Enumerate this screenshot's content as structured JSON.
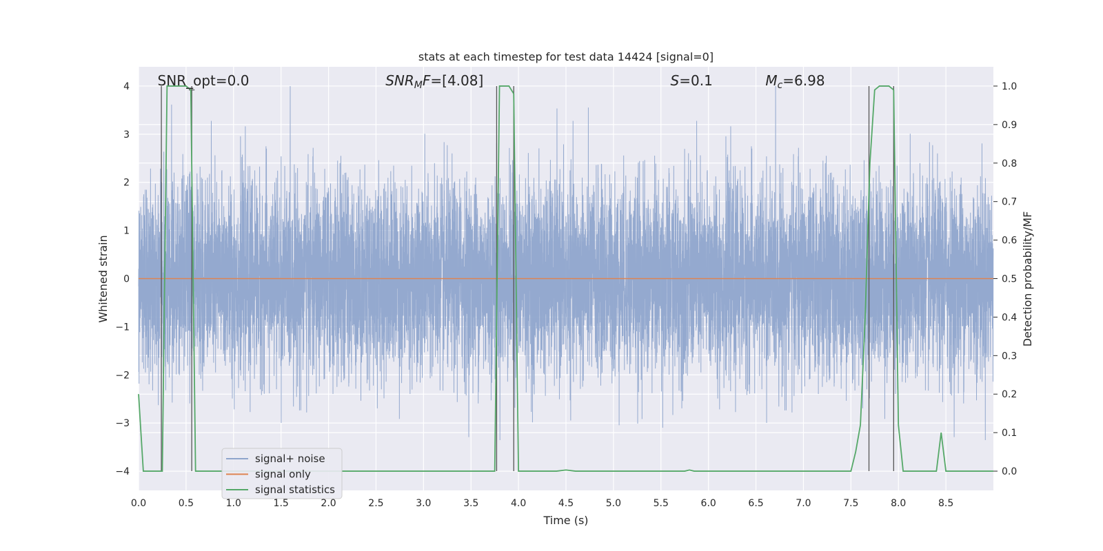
{
  "chart_data": {
    "type": "line",
    "title": "stats at each timestep for test data 14424 [signal=0]",
    "xlabel": "Time (s)",
    "ylabel": "Whitened strain",
    "y2label": "Detection probability/MF",
    "xlim": [
      0.0,
      9.0
    ],
    "ylim": [
      -4.4,
      4.4
    ],
    "y2lim": [
      -0.05,
      1.05
    ],
    "xticks": [
      0.0,
      0.5,
      1.0,
      1.5,
      2.0,
      2.5,
      3.0,
      3.5,
      4.0,
      4.5,
      5.0,
      5.5,
      6.0,
      6.5,
      7.0,
      7.5,
      8.0,
      8.5
    ],
    "xtick_labels": [
      "0.0",
      "0.5",
      "1.0",
      "1.5",
      "2.0",
      "2.5",
      "3.0",
      "3.5",
      "4.0",
      "4.5",
      "5.0",
      "5.5",
      "6.0",
      "6.5",
      "7.0",
      "7.5",
      "8.0",
      "8.5"
    ],
    "yticks": [
      -4,
      -3,
      -2,
      -1,
      0,
      1,
      2,
      3,
      4
    ],
    "ytick_labels": [
      "−4",
      "−3",
      "−2",
      "−1",
      "0",
      "1",
      "2",
      "3",
      "4"
    ],
    "y2ticks": [
      0.0,
      0.1,
      0.2,
      0.3,
      0.4,
      0.5,
      0.6,
      0.7,
      0.8,
      0.9,
      1.0
    ],
    "y2tick_labels": [
      "0.0",
      "0.1",
      "0.2",
      "0.3",
      "0.4",
      "0.5",
      "0.6",
      "0.7",
      "0.8",
      "0.9",
      "1.0"
    ],
    "grid": true,
    "legend_position": "bottom-left",
    "annotations": [
      {
        "name": "snr-opt-annotation",
        "text": "SNR_opt=0.0",
        "x": 0.2
      },
      {
        "name": "snr-mf-annotation",
        "text": "SNRMF=[4.08]",
        "x": 2.6
      },
      {
        "name": "s-annotation",
        "text": "S=0.1",
        "x": 5.6
      },
      {
        "name": "mc-annotation",
        "text": "Mc=6.98",
        "x": 6.6
      }
    ],
    "series": [
      {
        "name": "signal+ noise",
        "color": "#8fa5cc",
        "axis": "left",
        "kind": "noise",
        "sample_rate": 1024,
        "typical_abs": 1.6,
        "peak_abs": 4.0,
        "duration": 9.0
      },
      {
        "name": "signal only",
        "color": "#dd8452",
        "axis": "left",
        "x": [
          0.0,
          9.0
        ],
        "values": [
          0.0,
          0.0
        ]
      },
      {
        "name": "signal statistics",
        "color": "#55a868",
        "axis": "right",
        "x": [
          0.0,
          0.05,
          0.1,
          0.15,
          0.2,
          0.25,
          0.3,
          0.35,
          0.4,
          0.45,
          0.5,
          0.55,
          0.6,
          0.65,
          0.7,
          1.0,
          2.0,
          2.85,
          3.0,
          3.5,
          3.6,
          3.7,
          3.75,
          3.8,
          3.85,
          3.9,
          3.95,
          4.0,
          4.1,
          4.2,
          4.4,
          4.5,
          4.6,
          5.0,
          5.5,
          5.75,
          5.8,
          5.85,
          6.0,
          6.5,
          7.0,
          7.5,
          7.55,
          7.6,
          7.65,
          7.7,
          7.75,
          7.8,
          7.85,
          7.9,
          7.95,
          8.0,
          8.05,
          8.1,
          8.2,
          8.3,
          8.35,
          8.4,
          8.45,
          8.5,
          8.6,
          9.0
        ],
        "values": [
          0.2,
          0.0,
          0.0,
          0.0,
          0.0,
          0.0,
          1.0,
          1.0,
          1.0,
          1.0,
          1.0,
          0.99,
          0.0,
          0.0,
          0.0,
          0.0,
          0.0,
          0.0,
          0.0,
          0.0,
          0.0,
          0.0,
          0.0,
          1.0,
          1.0,
          1.0,
          0.98,
          0.0,
          0.0,
          0.0,
          0.0,
          0.003,
          0.0,
          0.0,
          0.0,
          0.0,
          0.003,
          0.0,
          0.0,
          0.0,
          0.0,
          0.0,
          0.05,
          0.12,
          0.4,
          0.8,
          0.99,
          1.0,
          1.0,
          1.0,
          0.99,
          0.12,
          0.0,
          0.0,
          0.0,
          0.0,
          0.0,
          0.0,
          0.1,
          0.0,
          0.0,
          0.0
        ]
      }
    ],
    "vertical_markers": [
      0.24,
      0.56,
      3.77,
      3.95,
      7.69,
      7.95
    ]
  }
}
